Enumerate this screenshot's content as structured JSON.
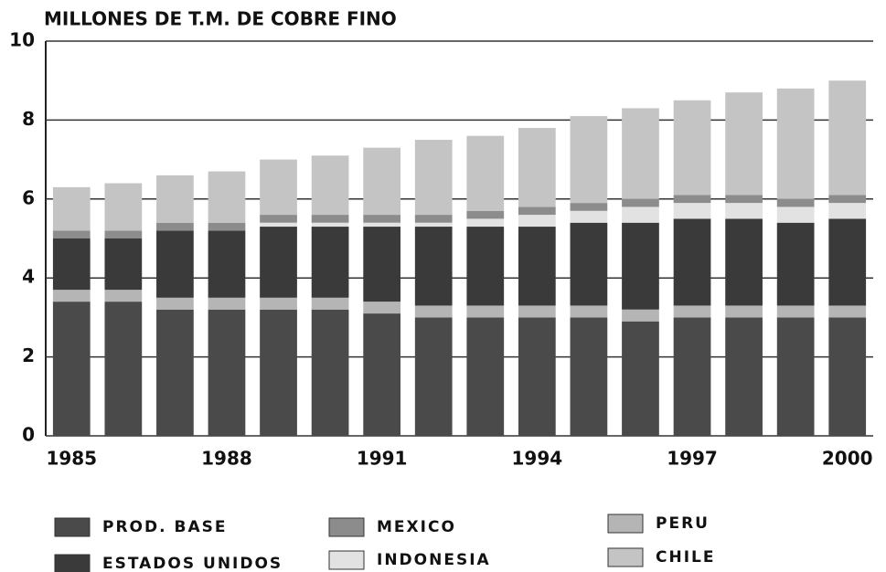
{
  "chart_data": {
    "type": "stacked_bar",
    "title": "MILLONES DE T.M. DE COBRE FINO",
    "categories": [
      "1985",
      null,
      null,
      "1988",
      null,
      null,
      "1991",
      null,
      null,
      "1994",
      null,
      null,
      "1997",
      null,
      null,
      "2000"
    ],
    "series": [
      {
        "name": "PROD. BASE",
        "color": "#4a4a4a",
        "values": [
          3.4,
          3.4,
          3.2,
          3.2,
          3.2,
          3.2,
          3.1,
          3.0,
          3.0,
          3.0,
          3.0,
          2.9,
          3.0,
          3.0,
          3.0,
          3.0
        ]
      },
      {
        "name": "PERU",
        "color": "#b5b5b5",
        "values": [
          0.3,
          0.3,
          0.3,
          0.3,
          0.3,
          0.3,
          0.3,
          0.3,
          0.3,
          0.3,
          0.3,
          0.3,
          0.3,
          0.3,
          0.3,
          0.3
        ]
      },
      {
        "name": "ESTADOS UNIDOS",
        "color": "#3a3a3a",
        "values": [
          1.3,
          1.3,
          1.7,
          1.7,
          1.8,
          1.8,
          1.9,
          2.0,
          2.0,
          2.0,
          2.1,
          2.2,
          2.2,
          2.2,
          2.1,
          2.2
        ]
      },
      {
        "name": "INDONESIA",
        "color": "#e2e2e2",
        "values": [
          0,
          0,
          0,
          0,
          0.1,
          0.1,
          0.1,
          0.1,
          0.2,
          0.3,
          0.3,
          0.4,
          0.4,
          0.4,
          0.4,
          0.4
        ]
      },
      {
        "name": "MEXICO",
        "color": "#8c8c8c",
        "values": [
          0.2,
          0.2,
          0.2,
          0.2,
          0.2,
          0.2,
          0.2,
          0.2,
          0.2,
          0.2,
          0.2,
          0.2,
          0.2,
          0.2,
          0.2,
          0.2
        ]
      },
      {
        "name": "CHILE",
        "color": "#c4c4c4",
        "values": [
          1.1,
          1.2,
          1.2,
          1.3,
          1.4,
          1.5,
          1.7,
          1.9,
          1.9,
          2.0,
          2.2,
          2.3,
          2.4,
          2.6,
          2.8,
          2.9
        ]
      }
    ],
    "ylim": [
      0,
      10
    ],
    "yticks": [
      0,
      2,
      4,
      6,
      8,
      10
    ],
    "grid": true
  }
}
